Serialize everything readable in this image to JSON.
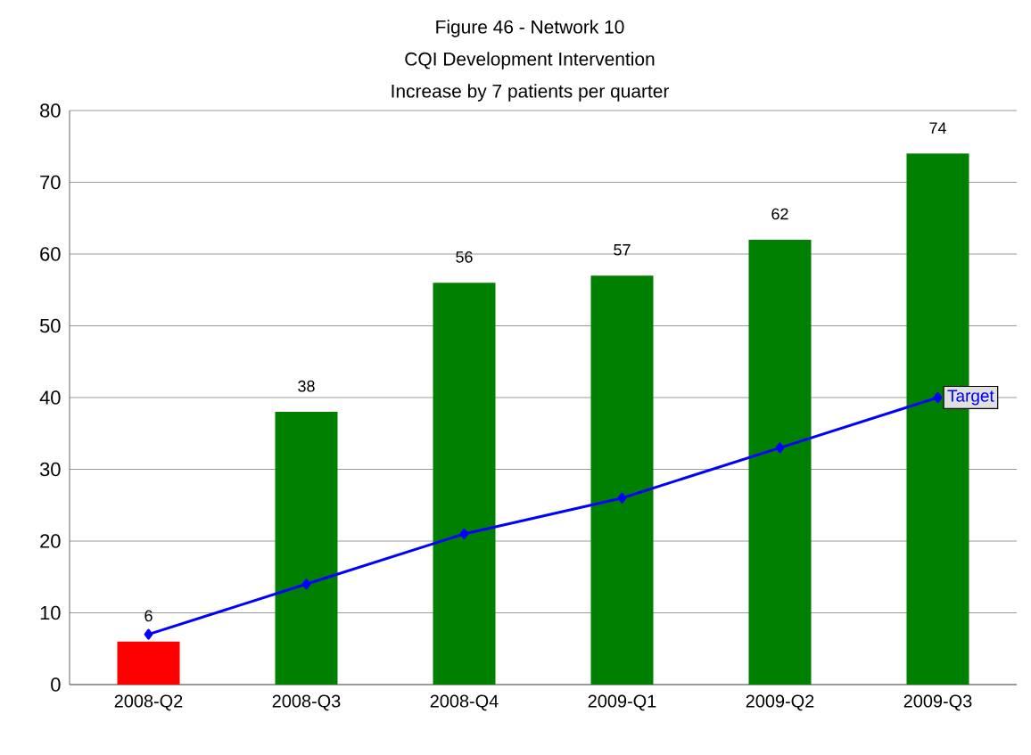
{
  "chart_data": {
    "type": "bar",
    "title": "Figure 46 - Network 10",
    "subtitle": "CQI Development Intervention",
    "annotations": [
      "Increase by 7 patients per quarter"
    ],
    "categories": [
      "2008-Q2",
      "2008-Q3",
      "2008-Q4",
      "2009-Q1",
      "2009-Q2",
      "2009-Q3"
    ],
    "series": [
      {
        "colors": [
          "#ff0000",
          "#008000",
          "#008000",
          "#008000",
          "#008000",
          "#008000"
        ],
        "values": [
          6,
          38,
          56,
          57,
          62,
          74
        ],
        "value_labels": [
          "6",
          "38",
          "56",
          "57",
          "62",
          "74"
        ]
      },
      {
        "type": "line",
        "name": "Target",
        "color": "#0000ff",
        "values": [
          7,
          14,
          21,
          26,
          33,
          40
        ]
      }
    ],
    "marker": "diamond",
    "ylim": [
      0,
      80
    ],
    "yticks": [
      0,
      10,
      20,
      30,
      40,
      50,
      60,
      70,
      80
    ],
    "grid": "y"
  }
}
